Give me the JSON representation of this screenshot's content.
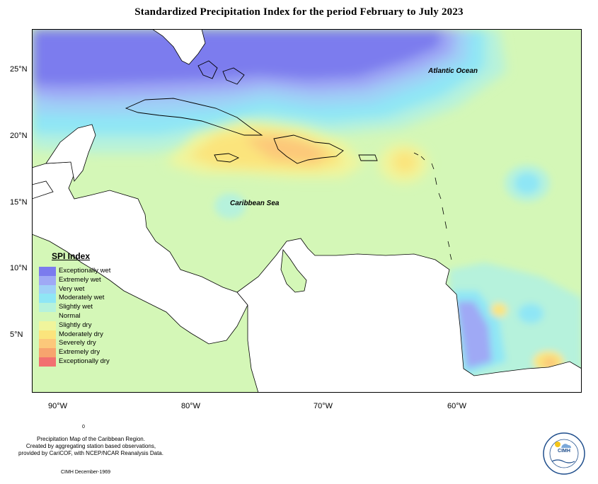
{
  "title": "Standardized Precipitation Index for the period February to July 2023",
  "map_labels": {
    "atlantic": "Atlantic Ocean",
    "caribbean": "Caribbean Sea"
  },
  "lat_ticks": [
    "25°N",
    "20°N",
    "15°N",
    "10°N",
    "5°N"
  ],
  "lon_ticks": [
    "90°W",
    "80°W",
    "70°W",
    "60°W"
  ],
  "legend": {
    "title": "SPI Index",
    "items": [
      {
        "label": "Exceptionally wet",
        "color": "#7b7bee"
      },
      {
        "label": "Extremely wet",
        "color": "#9fa9f5"
      },
      {
        "label": "Very wet",
        "color": "#9fd0f7"
      },
      {
        "label": "Moderately wet",
        "color": "#8fe6f5"
      },
      {
        "label": "Slightly wet",
        "color": "#b6f2dc"
      },
      {
        "label": "Normal",
        "color": "#d4f7b7"
      },
      {
        "label": "Slightly dry",
        "color": "#f0f59c"
      },
      {
        "label": "Moderately dry",
        "color": "#fbe47c"
      },
      {
        "label": "Severely dry",
        "color": "#fcc87a"
      },
      {
        "label": "Extremely dry",
        "color": "#f7a46e"
      },
      {
        "label": "Exceptionally dry",
        "color": "#f27070"
      }
    ]
  },
  "credits": {
    "line1": "Precipitation Map of the Caribbean Region.",
    "line2": "Created by aggregating station based observations,",
    "line3": "provided by CariCOF, with NCEP/NCAR Reanalysis Data.",
    "date": "CIMH December-1969",
    "mark": "0"
  },
  "logo": {
    "text": "CIMH"
  }
}
